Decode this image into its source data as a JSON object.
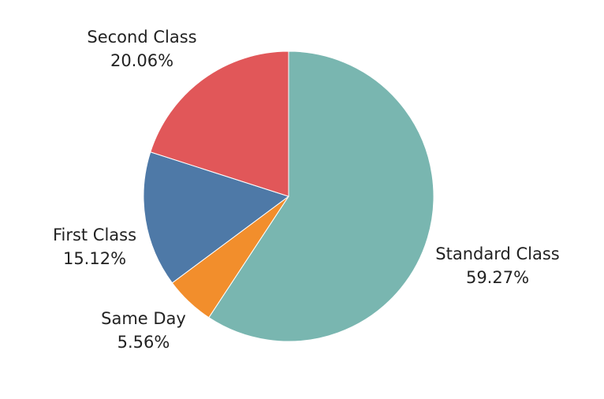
{
  "chart_data": {
    "type": "pie",
    "title": "",
    "slices": [
      {
        "name": "Standard Class",
        "value": 59.27,
        "label": "59.27%",
        "color": "#79b6b0"
      },
      {
        "name": "Same Day",
        "value": 5.56,
        "label": "5.56%",
        "color": "#f28e2c"
      },
      {
        "name": "First Class",
        "value": 15.12,
        "label": "15.12%",
        "color": "#4e79a7"
      },
      {
        "name": "Second Class",
        "value": 20.06,
        "label": "20.06%",
        "color": "#e15759"
      }
    ],
    "start_angle": "12 o'clock",
    "direction": "clockwise",
    "legend": "none"
  }
}
